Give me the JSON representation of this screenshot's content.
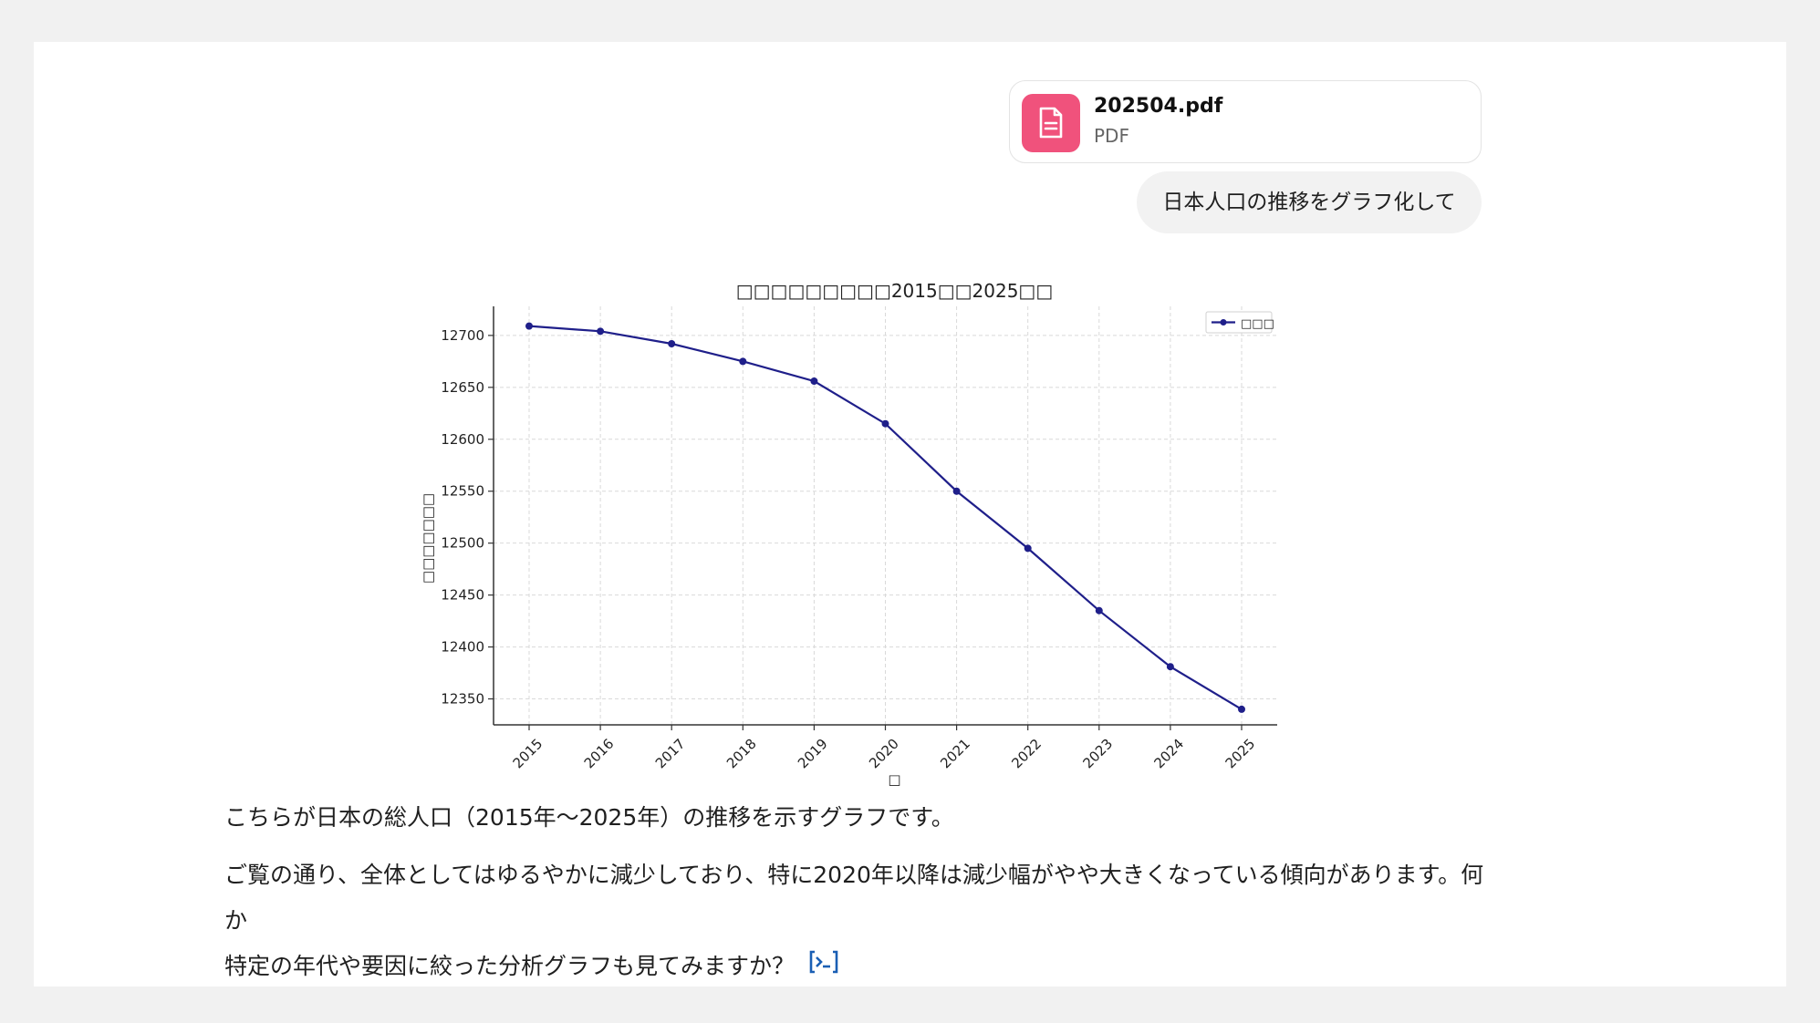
{
  "attachment": {
    "file_name": "202504.pdf",
    "file_type": "PDF",
    "icon": "document-icon",
    "icon_color": "#f0527c"
  },
  "user_message": "日本人口の推移をグラフ化して",
  "chart_data": {
    "type": "line",
    "title": "□□□□□□□□□2015□□2025□□",
    "xlabel": "□",
    "ylabel": "□□□□□□□",
    "x": [
      "2015",
      "2016",
      "2017",
      "2018",
      "2019",
      "2020",
      "2021",
      "2022",
      "2023",
      "2024",
      "2025"
    ],
    "series": [
      {
        "name": "□□□",
        "values": [
          12709,
          12704,
          12692,
          12675,
          12656,
          12615,
          12550,
          12495,
          12435,
          12381,
          12340
        ],
        "color": "#1f1f8a"
      }
    ],
    "yticks": [
      12350,
      12400,
      12450,
      12500,
      12550,
      12600,
      12650,
      12700
    ],
    "ylim": [
      12325,
      12728
    ],
    "grid": true,
    "legend": "top-right"
  },
  "response": {
    "para1": "こちらが日本の総人口（2015年～2025年）の推移を示すグラフです。",
    "para2_line1": "ご覧の通り、全体としてはゆるやかに減少しており、特に2020年以降は減少幅がやや大きくなっている傾向があります。何か",
    "para2_line2": "特定の年代や要因に絞った分析グラフも見てみますか？",
    "cite_icon": "code-interpreter-icon",
    "cite_color": "#1a5fb4"
  }
}
